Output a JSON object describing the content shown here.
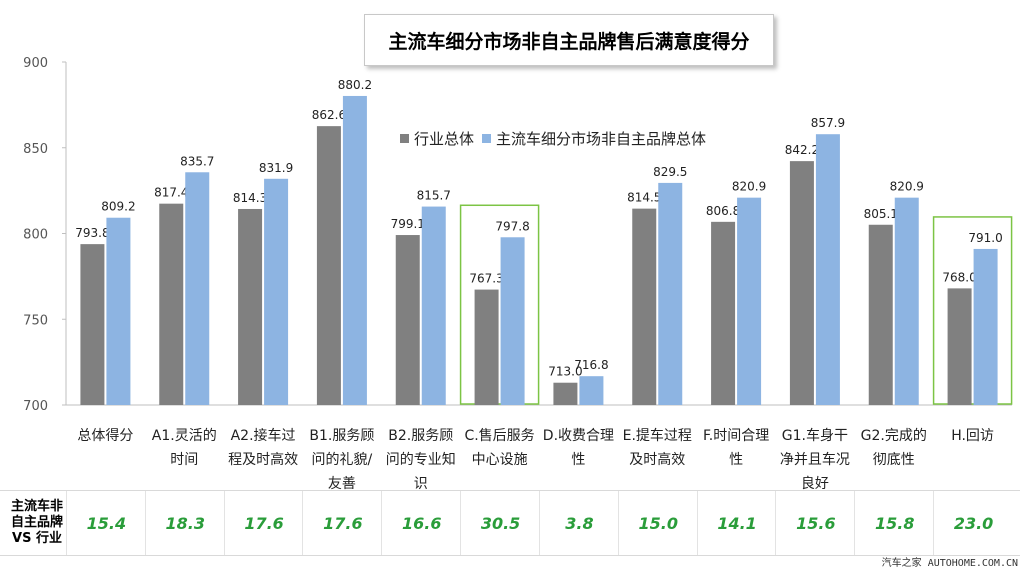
{
  "title": "主流车细分市场非自主品牌售后满意度得分",
  "legend": [
    {
      "label": "行业总体",
      "color": "#808080"
    },
    {
      "label": "主流车细分市场非自主品牌总体",
      "color": "#8db4e2"
    }
  ],
  "chart_data": {
    "type": "bar",
    "title": "主流车细分市场非自主品牌售后满意度得分",
    "ylim": [
      700,
      900
    ],
    "yticks": [
      700,
      750,
      800,
      850,
      900
    ],
    "categories": [
      [
        "总体得分"
      ],
      [
        "A1.灵活的",
        "时间"
      ],
      [
        "A2.接车过",
        "程及时高效"
      ],
      [
        "B1.服务顾",
        "问的礼貌/",
        "友善"
      ],
      [
        "B2.服务顾",
        "问的专业知",
        "识"
      ],
      [
        "C.售后服务",
        "中心设施"
      ],
      [
        "D.收费合理",
        "性"
      ],
      [
        "E.提车过程",
        "及时高效"
      ],
      [
        "F.时间合理",
        "性"
      ],
      [
        "G1.车身干",
        "净并且车况",
        "良好"
      ],
      [
        "G2.完成的",
        "彻底性"
      ],
      [
        "H.回访"
      ]
    ],
    "series": [
      {
        "name": "行业总体",
        "color": "#808080",
        "values": [
          793.8,
          817.4,
          814.3,
          862.6,
          799.1,
          767.3,
          713.0,
          814.5,
          806.8,
          842.2,
          805.1,
          768.0
        ],
        "labels": [
          "793.8",
          "817.4",
          "814.3",
          "862.6",
          "799.1",
          "767.3",
          "713.0",
          "814.5",
          "806.8",
          "842.2",
          "805.1",
          "768.0"
        ]
      },
      {
        "name": "主流车细分市场非自主品牌总体",
        "color": "#8db4e2",
        "values": [
          809.2,
          835.7,
          831.9,
          880.2,
          815.7,
          797.8,
          716.8,
          829.5,
          820.9,
          857.9,
          820.9,
          791.0
        ],
        "labels": [
          "809.2",
          "835.7",
          "831.9",
          "880.2",
          "815.7",
          "797.8",
          "716.8",
          "829.5",
          "820.9",
          "857.9",
          "820.9",
          "791.0"
        ]
      }
    ],
    "highlighted": [
      "C.售后服务中心设施",
      "H.回访"
    ],
    "highlight_color": "#7cc444"
  },
  "diff_row": {
    "label_lines": [
      "主流车非",
      "自主品牌",
      "VS 行业"
    ],
    "values": [
      "15.4",
      "18.3",
      "17.6",
      "17.6",
      "16.6",
      "30.5",
      "3.8",
      "15.0",
      "14.1",
      "15.6",
      "15.8",
      "23.0"
    ]
  },
  "watermark": "汽车之家 AUTOHOME.COM.CN"
}
